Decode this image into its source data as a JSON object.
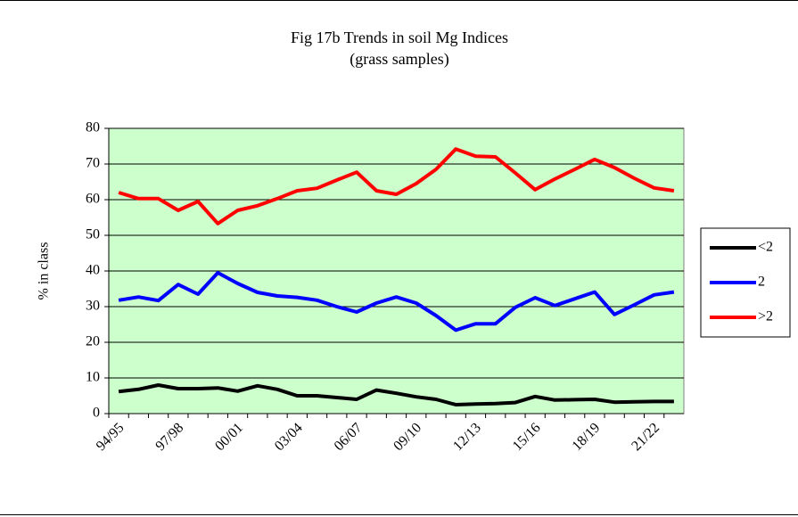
{
  "chart_data": {
    "type": "line",
    "title": "Fig 17b Trends in soil Mg Indices",
    "subtitle": "(grass samples)",
    "y_label": "% in class",
    "categories": [
      "94/95",
      null,
      null,
      "97/98",
      null,
      null,
      "00/01",
      null,
      null,
      "03/04",
      null,
      null,
      "06/07",
      null,
      null,
      "09/10",
      null,
      null,
      "12/13",
      null,
      null,
      "15/16",
      null,
      null,
      "18/19",
      null,
      null,
      "21/22",
      null
    ],
    "series": [
      {
        "name": "<2",
        "color": "#000000",
        "values": [
          6.2,
          6.8,
          8,
          7,
          7,
          7.2,
          6.3,
          7.8,
          6.8,
          5,
          5,
          4.5,
          4,
          6.6,
          5.7,
          4.7,
          4,
          2.5,
          2.7,
          2.8,
          3.1,
          4.8,
          3.8,
          3.9,
          4,
          3.2,
          3.3,
          3.4,
          3.4
        ]
      },
      {
        "name": "2",
        "color": "#0000ff",
        "values": [
          31.8,
          32.7,
          31.7,
          36.2,
          33.5,
          39.5,
          36.5,
          34,
          33,
          32.6,
          31.8,
          30,
          28.5,
          31,
          32.7,
          31,
          27.5,
          23.4,
          25.2,
          25.2,
          29.8,
          32.5,
          30.3,
          32.2,
          34.1,
          27.8,
          30.5,
          33.3,
          34.1
        ]
      },
      {
        "name": ">2",
        "color": "#ff0000",
        "values": [
          62,
          60.3,
          60.3,
          57,
          59.5,
          53.3,
          57,
          58.3,
          60.3,
          62.5,
          63.2,
          65.5,
          67.7,
          62.5,
          61.5,
          64.5,
          68.5,
          74.2,
          72.2,
          72,
          67.5,
          62.8,
          65.8,
          68.5,
          71.3,
          69,
          66,
          63.3,
          62.5
        ]
      }
    ],
    "ylim": [
      0,
      80
    ],
    "yticks": [
      0,
      10,
      20,
      30,
      40,
      50,
      60,
      70,
      80
    ],
    "grid": true,
    "background": "#ccffcc",
    "legend": "right"
  }
}
